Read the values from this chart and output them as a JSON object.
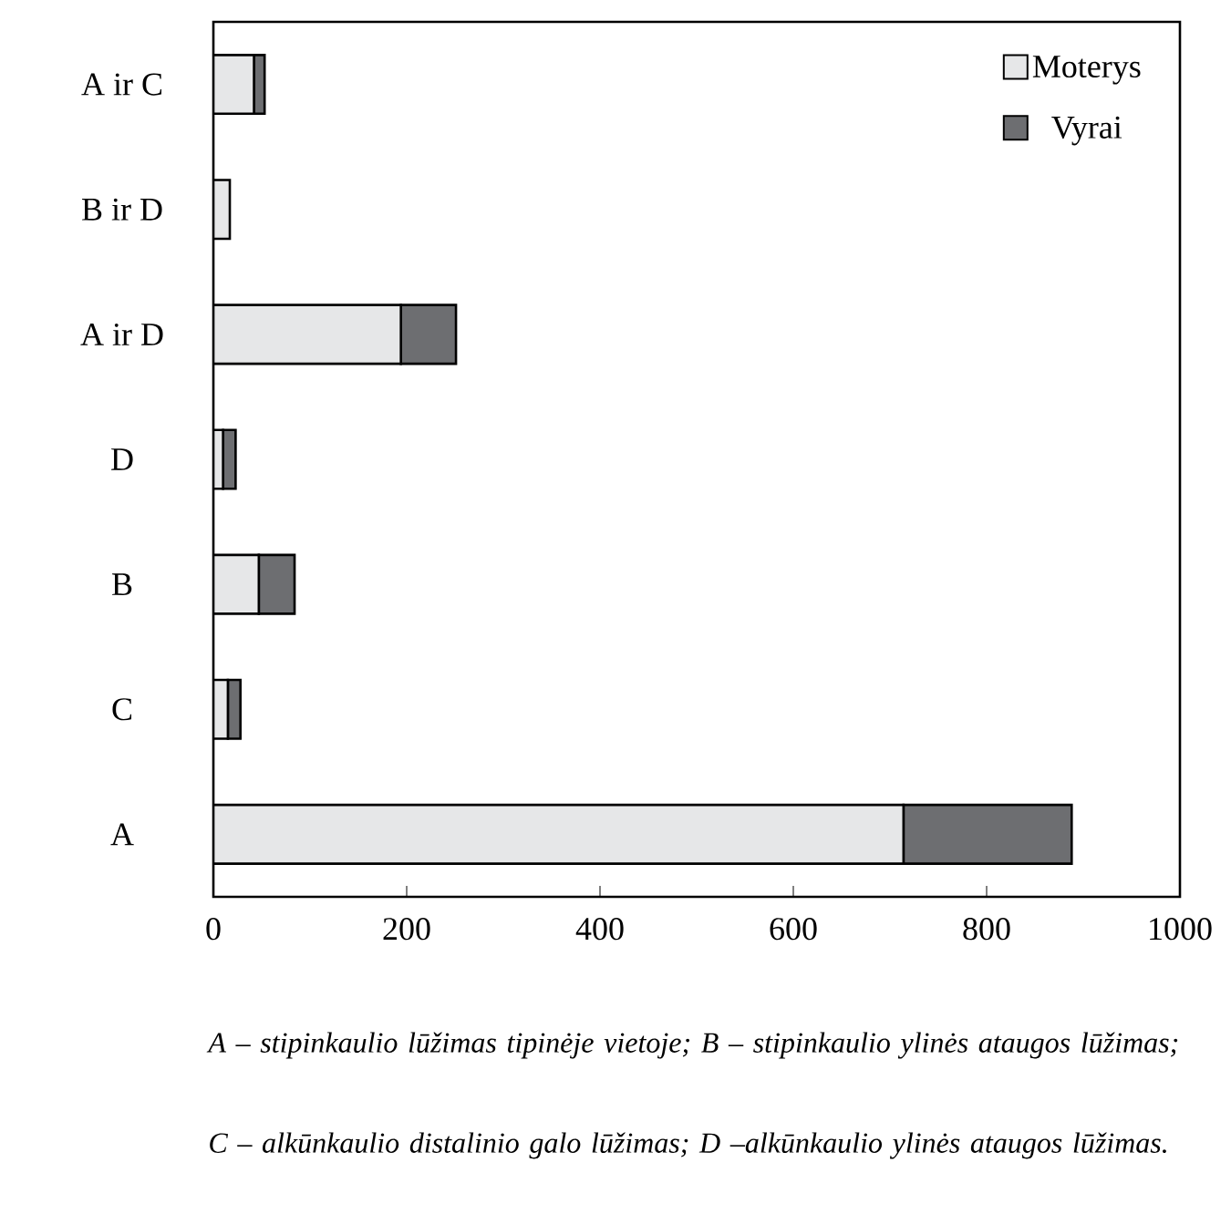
{
  "chart_data": {
    "type": "bar",
    "orientation": "horizontal",
    "stacked": true,
    "categories": [
      "A ir C",
      "B ir D",
      "A ir D",
      "D",
      "B",
      "C",
      "A"
    ],
    "series": [
      {
        "name": "Moterys",
        "color": "#e6e7e8",
        "values": [
          42,
          17,
          194,
          10,
          47,
          15,
          714
        ]
      },
      {
        "name": "Vyrai",
        "color": "#6d6e71",
        "values": [
          11,
          0,
          57,
          13,
          37,
          13,
          174
        ]
      }
    ],
    "xlim": [
      0,
      1000
    ],
    "xticks": [
      0,
      200,
      400,
      600,
      800,
      1000
    ],
    "grid": false,
    "legend": "top right",
    "annotations": [
      "A – stipinkaulio lūžimas tipinėje vietoje; B – stipinkaulio ylinės ataugos lūžimas;",
      "C – alkūnkaulio distalinio galo lūžimas; D –alkūnkaulio ylinės ataugos lūžimas."
    ]
  }
}
